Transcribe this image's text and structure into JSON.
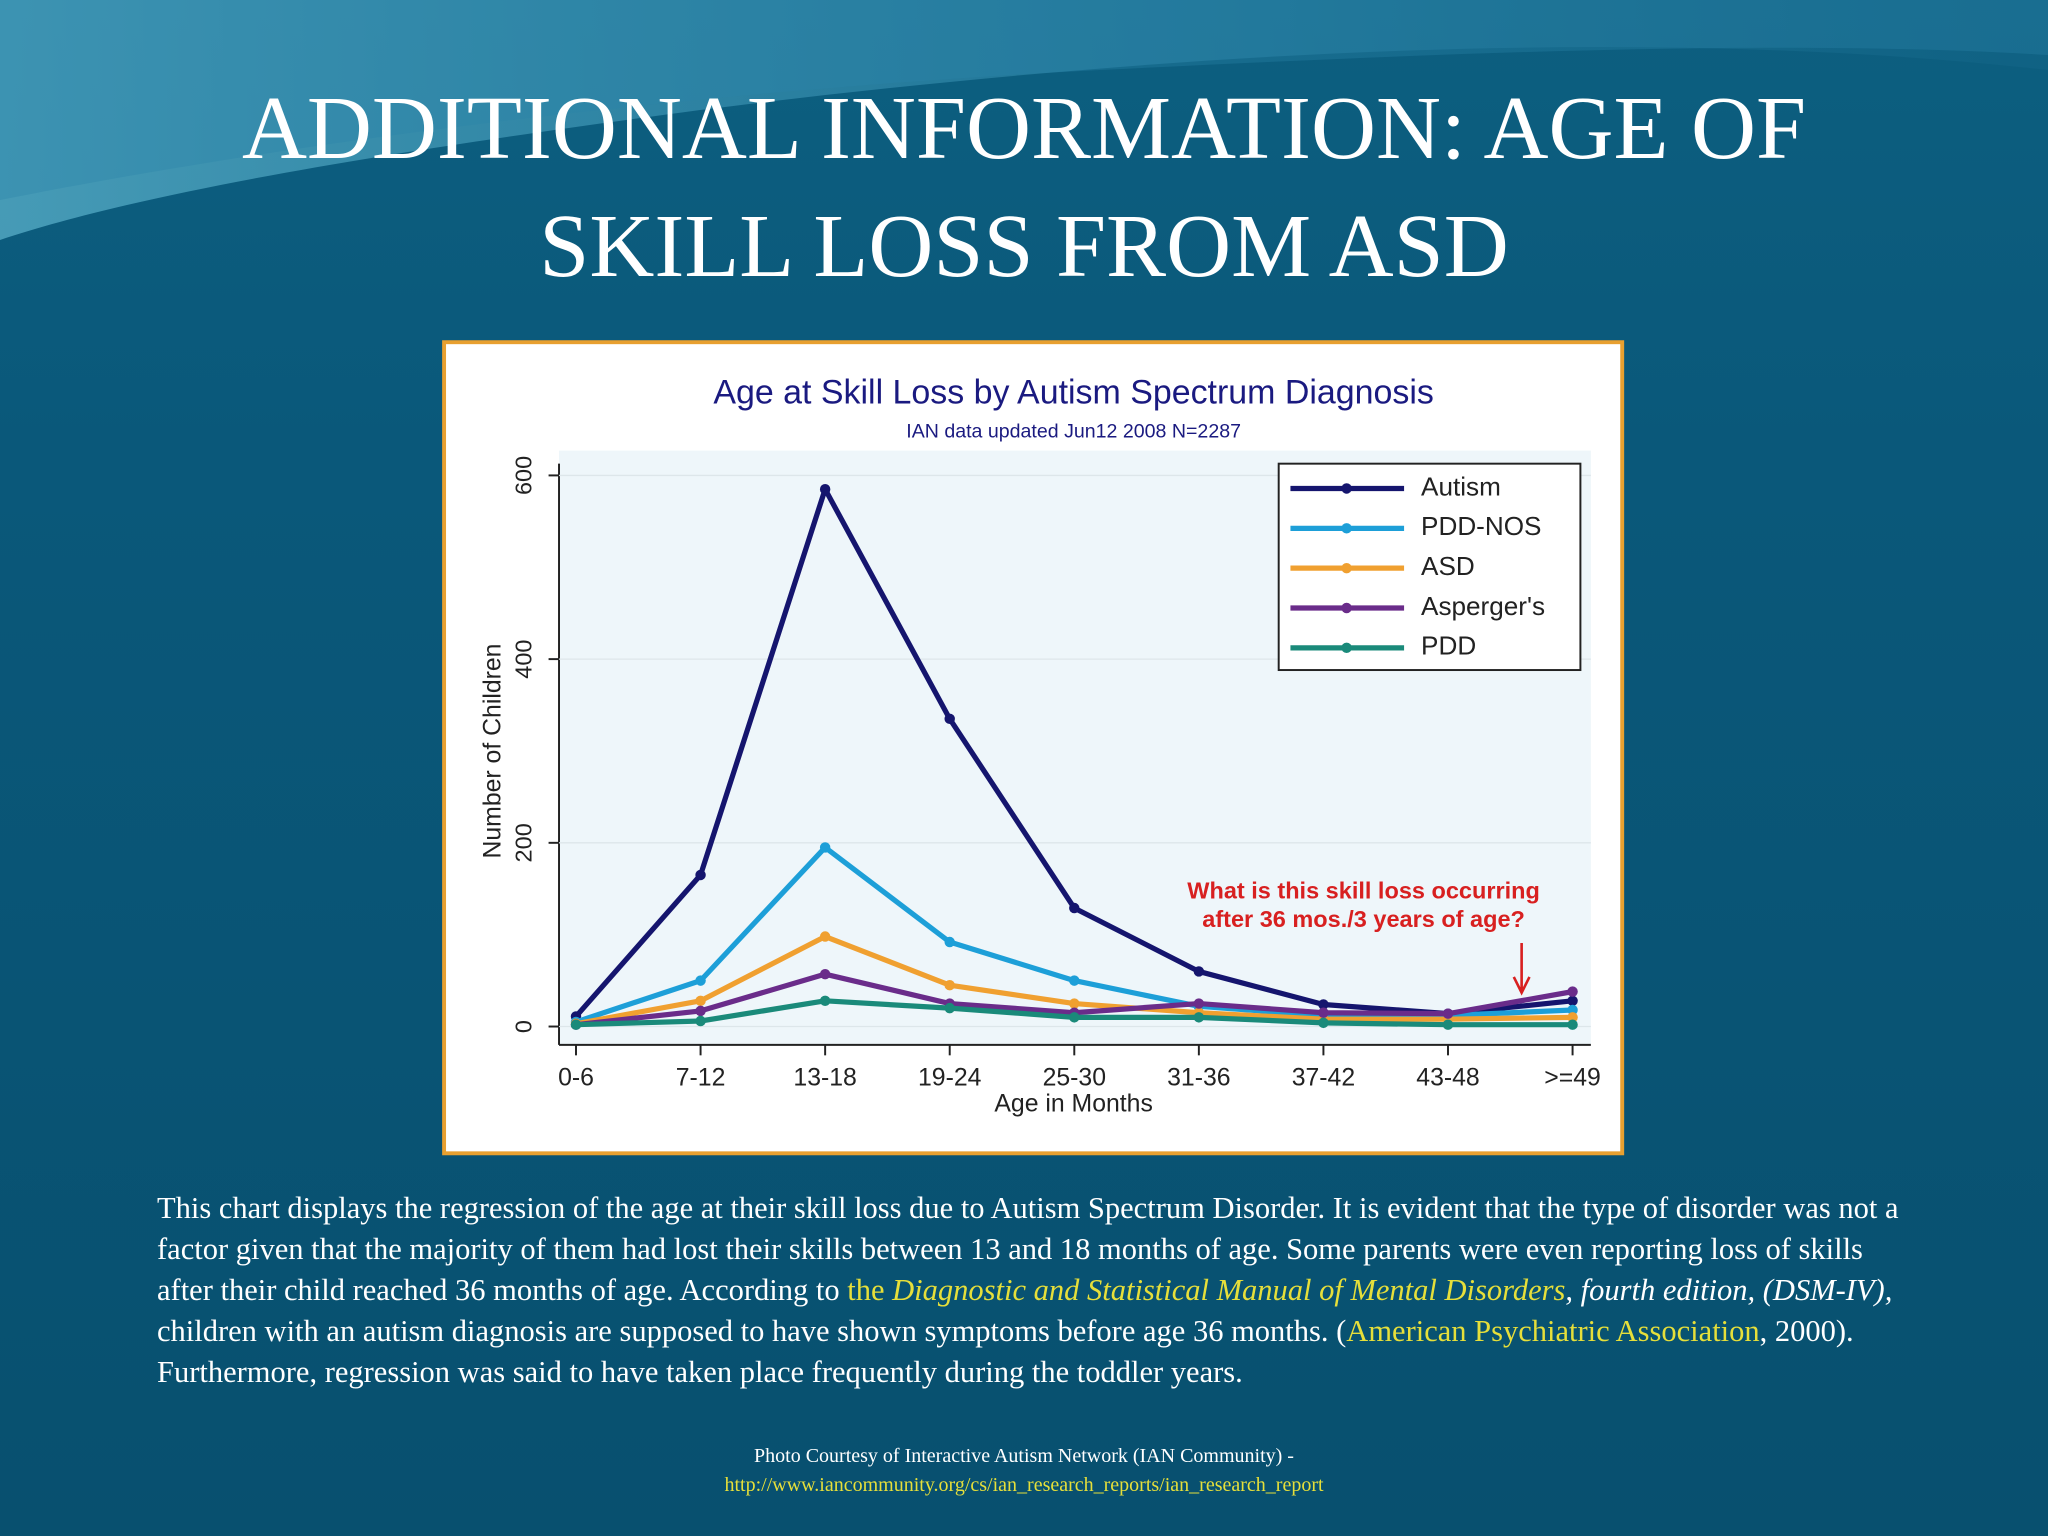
{
  "title": "ADDITIONAL INFORMATION: AGE OF SKILL LOSS FROM ASD",
  "chart_data": {
    "type": "line",
    "title": "Age at Skill Loss by Autism Spectrum Diagnosis",
    "subtitle": "IAN data updated Jun12 2008  N=2287",
    "x_label": "Age in Months",
    "y_label": "Number of Children",
    "categories": [
      "0-6",
      "7-12",
      "13-18",
      "19-24",
      "25-30",
      "31-36",
      "37-42",
      "43-48",
      ">=49"
    ],
    "series": [
      {
        "name": "Autism",
        "color": "#15156e",
        "values": [
          11,
          165,
          585,
          335,
          129,
          60,
          24,
          14,
          28
        ]
      },
      {
        "name": "PDD-NOS",
        "color": "#1d9fd8",
        "values": [
          5,
          50,
          195,
          92,
          50,
          22,
          12,
          12,
          18
        ]
      },
      {
        "name": "ASD",
        "color": "#f0a030",
        "values": [
          3,
          28,
          98,
          45,
          25,
          15,
          8,
          8,
          10
        ]
      },
      {
        "name": "Asperger's",
        "color": "#6a2c8a",
        "values": [
          2,
          17,
          57,
          25,
          15,
          25,
          15,
          14,
          38
        ]
      },
      {
        "name": "PDD",
        "color": "#1a8a7a",
        "values": [
          2,
          6,
          28,
          20,
          10,
          10,
          4,
          2,
          2
        ]
      }
    ],
    "ylim": [
      -20,
      627
    ],
    "yticks": [
      0,
      200,
      400,
      600
    ],
    "grid": true,
    "legend": "top-right",
    "annotation": [
      "What is this skill loss occurring",
      "after 36 mos./3 years of age?"
    ]
  },
  "body": [
    "This chart displays the regression of the age at their skill loss due to Autism Spectrum Disorder. It is evident that the type of disorder was not a factor given that the majority of them had lost their skills between 13 and 18 months of age. Some parents were even reporting loss of skills after their child reached 36 months of age. According to ",
    "the ",
    "Diagnostic and Statistical Manual of Mental Disorders",
    ", fourth edition, (DSM-IV),",
    " children with an autism diagnosis are supposed to have shown symptoms before age 36 months. (",
    "American Psychiatric Association",
    ", 2000). Furthermore, regression was said to have taken place frequently during the toddler years."
  ],
  "credit": {
    "text": "Photo Courtesy of Interactive Autism Network (IAN Community) -",
    "url": "http://www.iancommunity.org/cs/ian_research_reports/ian_research_report"
  }
}
